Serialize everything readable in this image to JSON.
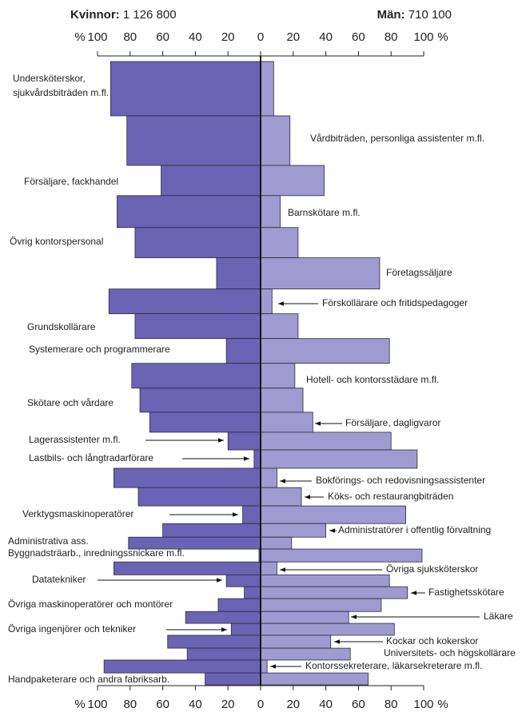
{
  "chart_data": {
    "type": "butterfly",
    "x_unit": "%",
    "xlim": [
      0,
      100
    ],
    "xticks": [
      0,
      20,
      40,
      60,
      80,
      100
    ],
    "categories": [
      "Undersköterskor, sjukvårdsbiträden m.fl.",
      "Vårdbiträden, personliga assistenter m.fl.",
      "Försäljare, fackhandel",
      "Barnskötare m.fl.",
      "Övrig kontorspersonal",
      "Företagssäljare",
      "Förskollärare och fritidspedagoger",
      "Grundskollärare",
      "Systemerare och programmerare",
      "Hotell- och kontorsstädare m.fl.",
      "Skötare och vårdare",
      "Försäljare, dagligvaror",
      "Lagerassistenter m.fl.",
      "Lastbils- och långtradarförare",
      "Bokförings- och redovisningsassistenter",
      "Köks- och restaurangbiträden",
      "Verktygsmaskinoperatörer",
      "Administratörer i offentlig förvaltning",
      "Administrativa ass.",
      "Byggnadsträarb., inredningssnickare m.fl.",
      "Övriga sjuksköterskor",
      "Datatekniker",
      "Fastighetsskötare",
      "Övriga maskinoperatörer och montörer",
      "Läkare",
      "Övriga ingenjörer och tekniker",
      "Kockar och kokerskor",
      "Universitets- och högskollärare",
      "Kontorssekreterare, läkarsekreterare m.fl.",
      "Handpaketerare och andra fabriksarb."
    ],
    "sizes": [
      160000,
      146000,
      89000,
      94000,
      89000,
      92000,
      73000,
      73000,
      73000,
      73000,
      71000,
      59000,
      52000,
      54000,
      57000,
      54000,
      52000,
      40000,
      35000,
      38000,
      38000,
      35000,
      35000,
      38000,
      35000,
      35000,
      38000,
      35000,
      38000,
      35000
    ],
    "series": [
      {
        "name": "Kvinnor:",
        "total": 1126800,
        "total_label": "1 126 800",
        "color": "#6b63b4",
        "side": "left",
        "values": [
          92,
          82,
          61,
          88,
          77,
          27,
          93,
          77,
          21,
          79,
          74,
          68,
          20,
          4,
          90,
          75,
          11,
          60,
          81,
          1,
          90,
          21,
          10,
          26,
          46,
          18,
          57,
          45,
          96,
          34
        ]
      },
      {
        "name": "Män:",
        "total": 710100,
        "total_label": "710 100",
        "color": "#9f9acf",
        "side": "right",
        "values": [
          8,
          18,
          39,
          12,
          23,
          73,
          7,
          23,
          79,
          21,
          26,
          32,
          80,
          96,
          10,
          25,
          89,
          40,
          19,
          99,
          10,
          79,
          90,
          74,
          54,
          82,
          43,
          55,
          4,
          66
        ]
      }
    ]
  }
}
